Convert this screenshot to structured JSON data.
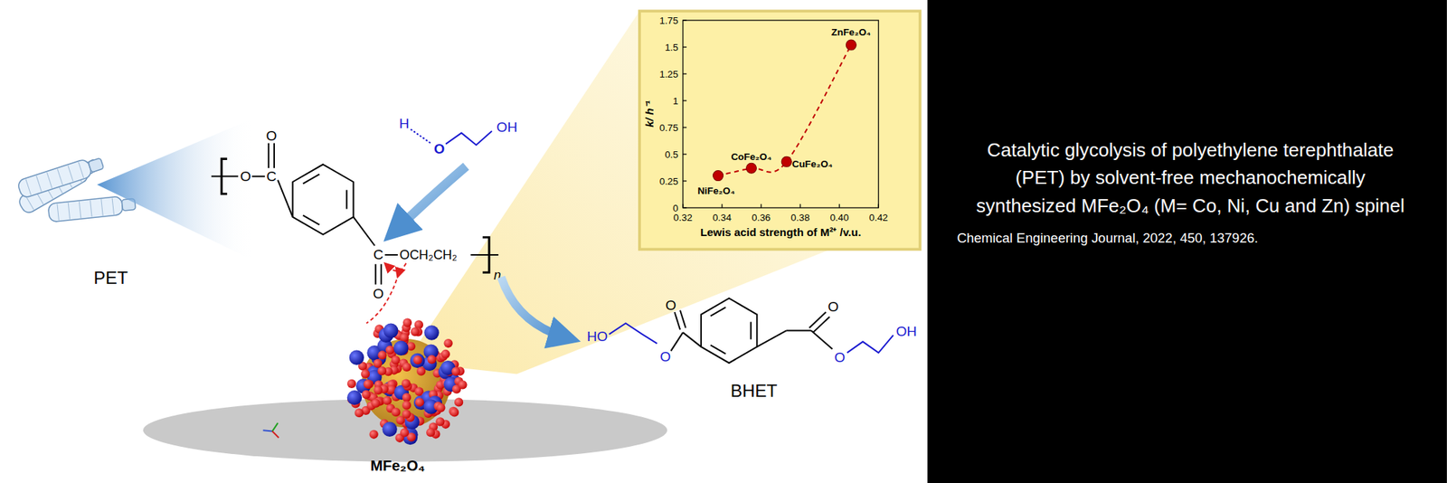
{
  "chart_data": {
    "type": "scatter",
    "x_label": "Lewis acid strength of M²⁺ /v.u.",
    "y_label": "k/ h⁻¹",
    "xlim": [
      0.32,
      0.42
    ],
    "xticks": [
      0.32,
      0.34,
      0.36,
      0.38,
      {
        "value": 0.4,
        "label": "0.40"
      },
      0.42
    ],
    "ylim": [
      0,
      1.75
    ],
    "yticks": [
      0,
      0.25,
      0.5,
      0.75,
      1,
      1.25,
      1.5,
      1.75
    ],
    "grid": false,
    "series": [
      {
        "color": "#c00000",
        "marker": "circle",
        "line_style": "dashed",
        "x": [
          0.338,
          0.355,
          0.373,
          0.406
        ],
        "values": [
          0.3,
          0.37,
          0.43,
          1.52
        ],
        "point_labels": [
          "NiFe₂O₄",
          "CoFe₂O₄",
          "CuFe₂O₄",
          "ZnFe₂O₄"
        ]
      }
    ]
  },
  "diagram": {
    "pet_label": "PET",
    "particle_label": "MFe₂O₄",
    "product_label": "BHET",
    "repeat_unit": {
      "ester_o": "O",
      "c1": "C",
      "carbonyl_o1": "O",
      "c2": "C",
      "carbonyl_o2": "O",
      "chain": "OCH₂CH₂",
      "n": "n"
    },
    "glycol": {
      "h": "H",
      "o": "O",
      "oh": "OH"
    },
    "bhet": {
      "ho": "HO",
      "o_top_left": "O",
      "o_left": "O",
      "o_top_right": "O",
      "o_right": "O",
      "oh": "OH"
    },
    "caption": {
      "title_lines": [
        "Catalytic glycolysis of polyethylene terephthalate",
        "(PET) by solvent-free mechanochemically",
        "synthesized MFe₂O₄ (M= Co, Ni, Cu and Zn) spinel"
      ],
      "citation": "Chemical Engineering Journal, 2022, 450, 137926."
    }
  }
}
